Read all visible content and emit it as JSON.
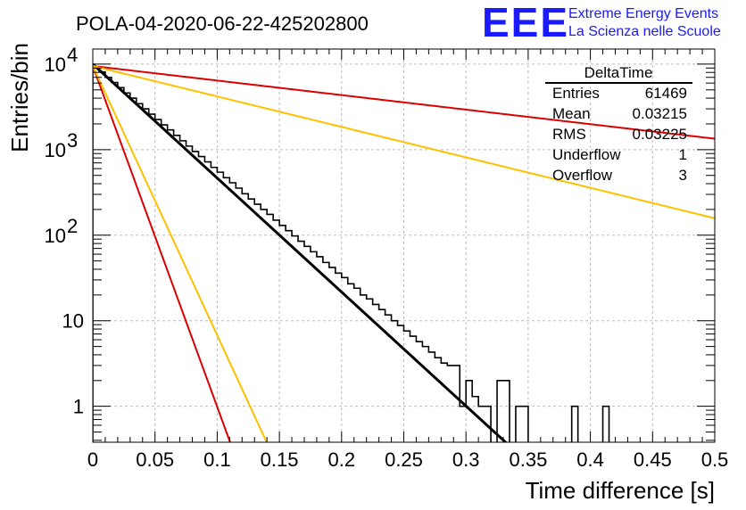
{
  "chart_data": {
    "type": "histogram",
    "title": "POLA-04-2020-06-22-425202800",
    "xlabel": "Time difference [s]",
    "ylabel": "Entries/bin",
    "xlim": [
      0,
      0.5
    ],
    "ylim": [
      0.38,
      15000
    ],
    "yscale": "log",
    "grid": true,
    "xticks": [
      "0",
      "0.05",
      "0.1",
      "0.15",
      "0.2",
      "0.25",
      "0.3",
      "0.35",
      "0.4",
      "0.45",
      "0.5"
    ],
    "yticks": [
      {
        "value": 1,
        "base": "1",
        "exp": ""
      },
      {
        "value": 10,
        "base": "10",
        "exp": ""
      },
      {
        "value": 100,
        "base": "10",
        "exp": "2"
      },
      {
        "value": 1000,
        "base": "10",
        "exp": "3"
      },
      {
        "value": 10000,
        "base": "10",
        "exp": "4"
      }
    ],
    "histogram": {
      "bin_width": 0.005,
      "x_start": 0,
      "values": [
        9000,
        8100,
        7000,
        6100,
        5300,
        4600,
        4000,
        3450,
        3000,
        2600,
        2250,
        1950,
        1700,
        1470,
        1270,
        1100,
        950,
        830,
        720,
        620,
        545,
        470,
        410,
        355,
        305,
        265,
        230,
        200,
        175,
        150,
        130,
        113,
        98,
        85,
        74,
        64,
        56,
        48,
        42,
        36,
        32,
        27,
        24,
        20,
        18,
        15.5,
        13.5,
        11.7,
        10,
        8.8,
        7.6,
        6.6,
        5.7,
        5,
        4.3,
        3.7,
        3.2,
        3,
        3,
        2.2,
        1.9,
        1.3,
        1.1,
        0,
        0,
        0,
        0,
        0,
        0,
        0,
        0,
        0,
        0,
        0,
        0,
        0,
        0,
        0,
        0,
        0,
        0,
        0,
        0,
        0,
        0,
        0,
        0,
        0,
        0,
        0,
        0,
        0,
        0,
        0,
        0,
        0,
        0,
        0,
        0,
        0,
        0,
        0
      ],
      "sparse_bins": [
        {
          "x": 0.295,
          "value": 1
        },
        {
          "x": 0.3,
          "value": 2
        },
        {
          "x": 0.31,
          "value": 1
        },
        {
          "x": 0.315,
          "value": 1
        },
        {
          "x": 0.325,
          "value": 2
        },
        {
          "x": 0.33,
          "value": 2
        },
        {
          "x": 0.34,
          "value": 1
        },
        {
          "x": 0.345,
          "value": 1
        },
        {
          "x": 0.385,
          "value": 1
        },
        {
          "x": 0.41,
          "value": 1
        }
      ]
    },
    "fits": [
      {
        "color": "#000000",
        "A": 10000,
        "tau": 0.0326,
        "width": 3
      },
      {
        "color": "#dd0000",
        "A": 9500,
        "tau": 0.0109,
        "width": 2
      },
      {
        "color": "#ffc000",
        "A": 9500,
        "tau": 0.0138,
        "width": 2
      },
      {
        "color": "#dd0000",
        "A": 9500,
        "tau": 0.2555,
        "width": 2
      },
      {
        "color": "#ffc000",
        "A": 9500,
        "tau": 0.122,
        "width": 2
      }
    ],
    "stats_box": {
      "title": "DeltaTime",
      "rows": [
        {
          "label": "Entries",
          "value": "61469"
        },
        {
          "label": "Mean",
          "value": "0.03215"
        },
        {
          "label": "RMS",
          "value": "0.03225"
        },
        {
          "label": "Underflow",
          "value": "1"
        },
        {
          "label": "Overflow",
          "value": "3"
        }
      ]
    }
  },
  "logo": {
    "text": "EEE",
    "line1": "Extreme Energy Events",
    "line2": "La Scienza nelle Scuole"
  }
}
